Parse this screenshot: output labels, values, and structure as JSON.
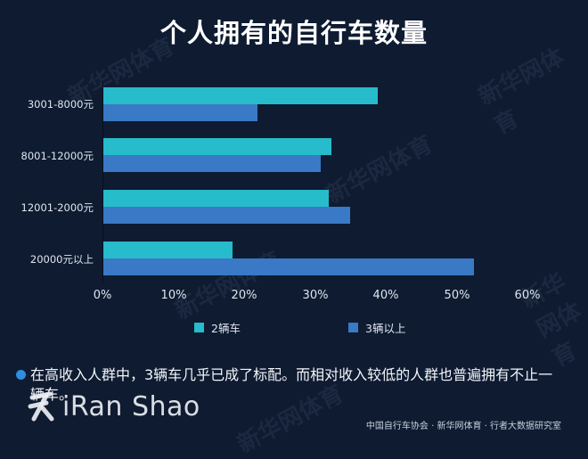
{
  "header": {
    "title": "个人拥有的自行车数量"
  },
  "chart_data": {
    "type": "bar",
    "orientation": "horizontal",
    "title": "个人拥有的自行车数量",
    "xlabel": "",
    "ylabel": "",
    "categories": [
      "3001-8000元",
      "8001-12000元",
      "12001-2000元",
      "20000元以上"
    ],
    "series": [
      {
        "name": "2辆车",
        "color": "#26bccb",
        "values": [
          38.7,
          32.2,
          31.8,
          18.2
        ]
      },
      {
        "name": "3辆以上",
        "color": "#3a79c5",
        "values": [
          21.7,
          30.7,
          34.8,
          52.3
        ]
      }
    ],
    "xlim": [
      0,
      60
    ],
    "x_ticks": [
      "0%",
      "10%",
      "20%",
      "30%",
      "40%",
      "50%",
      "60%"
    ],
    "grid": false,
    "legend_position": "bottom"
  },
  "legend": [
    {
      "label": "2辆车",
      "color": "#26bccb"
    },
    {
      "label": "3辆以上",
      "color": "#3a79c5"
    }
  ],
  "note": {
    "text": "在高收入人群中，3辆车几乎已成了标配。而相对收入较低的人群也普遍拥有不止一辆车。"
  },
  "logo": {
    "text": "iRan Shao"
  },
  "source": {
    "text": "中国自行车协会 · 新华网体育 · 行者大数据研究室"
  },
  "watermark": {
    "text": "新华网体育"
  }
}
